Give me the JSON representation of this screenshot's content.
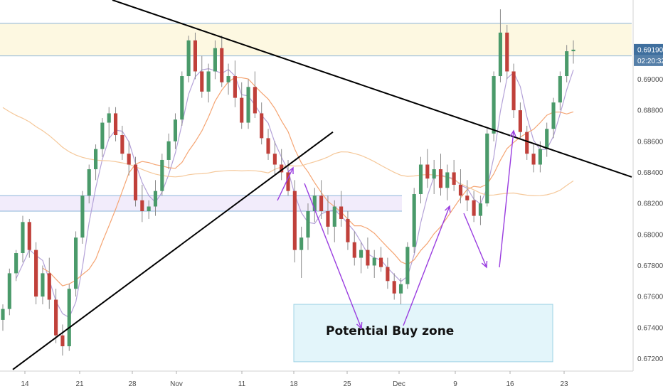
{
  "chart_data": {
    "type": "candlestick",
    "title": "",
    "xlabel": "",
    "ylabel": "",
    "x_ticks": [
      "14",
      "21",
      "28",
      "Nov",
      "11",
      "18",
      "25",
      "Dec",
      "9",
      "16",
      "23"
    ],
    "y_ticks": [
      0.672,
      0.674,
      0.676,
      0.678,
      0.68,
      0.682,
      0.684,
      0.686,
      0.688,
      0.69
    ],
    "y_tick_labels": [
      "0.67200",
      "0.67400",
      "0.67600",
      "0.67800",
      "0.68000",
      "0.68200",
      "0.68400",
      "0.68600",
      "0.68800",
      "0.69000"
    ],
    "ylim": [
      0.6712,
      0.6951
    ],
    "last_price": 0.6919,
    "last_price_label": "0.69190",
    "countdown_label": "02:20:32",
    "colors": {
      "up": "#4a9a6a",
      "down": "#c0403a",
      "wick": "#8a8a8a",
      "trendline": "#000000",
      "arrows": "#9a3de0",
      "zone_fill": "#e3f5fa",
      "zone_border": "#9fd3e6",
      "resistance_band": "#fdf8e1",
      "support_band": "#f2ecfb",
      "band_line": "#8cb4d9",
      "ma_fast": "#b4a2d8",
      "ma_mid": "#f5a573",
      "ma_slow": "#f5c89a",
      "badge_price": "#3f6f9e",
      "badge_timer": "#557fa8"
    },
    "candles_ohlc": [
      [
        0.6745,
        0.6755,
        0.6738,
        0.6752
      ],
      [
        0.6752,
        0.6778,
        0.6748,
        0.6775
      ],
      [
        0.6775,
        0.679,
        0.677,
        0.6788
      ],
      [
        0.6788,
        0.6812,
        0.6782,
        0.6808
      ],
      [
        0.6808,
        0.681,
        0.6785,
        0.679
      ],
      [
        0.679,
        0.6795,
        0.6755,
        0.676
      ],
      [
        0.676,
        0.678,
        0.6755,
        0.6775
      ],
      [
        0.6775,
        0.6785,
        0.6752,
        0.6758
      ],
      [
        0.6758,
        0.6765,
        0.673,
        0.6735
      ],
      [
        0.6735,
        0.6742,
        0.6722,
        0.6728
      ],
      [
        0.6728,
        0.6768,
        0.6725,
        0.6765
      ],
      [
        0.6765,
        0.6802,
        0.676,
        0.6798
      ],
      [
        0.6798,
        0.6828,
        0.6794,
        0.6825
      ],
      [
        0.6825,
        0.6845,
        0.682,
        0.6842
      ],
      [
        0.6842,
        0.6858,
        0.6835,
        0.6855
      ],
      [
        0.6855,
        0.6875,
        0.685,
        0.6872
      ],
      [
        0.6872,
        0.6882,
        0.6862,
        0.6878
      ],
      [
        0.6878,
        0.6882,
        0.686,
        0.6864
      ],
      [
        0.6864,
        0.687,
        0.6848,
        0.6852
      ],
      [
        0.6852,
        0.686,
        0.6838,
        0.6845
      ],
      [
        0.6845,
        0.685,
        0.6818,
        0.6822
      ],
      [
        0.6822,
        0.6832,
        0.6808,
        0.6815
      ],
      [
        0.6815,
        0.6822,
        0.681,
        0.6818
      ],
      [
        0.6818,
        0.6835,
        0.6812,
        0.6828
      ],
      [
        0.6828,
        0.6852,
        0.6825,
        0.6848
      ],
      [
        0.6848,
        0.6865,
        0.6842,
        0.686
      ],
      [
        0.686,
        0.6878,
        0.6855,
        0.6874
      ],
      [
        0.6874,
        0.6905,
        0.687,
        0.6902
      ],
      [
        0.6902,
        0.6928,
        0.6898,
        0.6925
      ],
      [
        0.6925,
        0.693,
        0.69,
        0.6905
      ],
      [
        0.6905,
        0.6915,
        0.6888,
        0.6892
      ],
      [
        0.6892,
        0.691,
        0.6885,
        0.6905
      ],
      [
        0.6905,
        0.6925,
        0.69,
        0.692
      ],
      [
        0.692,
        0.6928,
        0.6895,
        0.6898
      ],
      [
        0.6898,
        0.691,
        0.689,
        0.6902
      ],
      [
        0.6902,
        0.6912,
        0.6882,
        0.6888
      ],
      [
        0.6888,
        0.6898,
        0.6868,
        0.6872
      ],
      [
        0.6872,
        0.69,
        0.6868,
        0.6895
      ],
      [
        0.6895,
        0.6905,
        0.6875,
        0.6878
      ],
      [
        0.6878,
        0.6885,
        0.6858,
        0.6862
      ],
      [
        0.6862,
        0.6868,
        0.6848,
        0.6852
      ],
      [
        0.6852,
        0.686,
        0.6838,
        0.6845
      ],
      [
        0.6845,
        0.6855,
        0.6835,
        0.684
      ],
      [
        0.684,
        0.6848,
        0.6825,
        0.6828
      ],
      [
        0.6828,
        0.6835,
        0.6782,
        0.679
      ],
      [
        0.679,
        0.6805,
        0.6772,
        0.6798
      ],
      [
        0.6798,
        0.682,
        0.679,
        0.6815
      ],
      [
        0.6815,
        0.683,
        0.6808,
        0.6825
      ],
      [
        0.6825,
        0.6835,
        0.681,
        0.6815
      ],
      [
        0.6815,
        0.6825,
        0.68,
        0.6805
      ],
      [
        0.6805,
        0.6822,
        0.6795,
        0.6818
      ],
      [
        0.6818,
        0.6828,
        0.6805,
        0.681
      ],
      [
        0.681,
        0.6815,
        0.679,
        0.6795
      ],
      [
        0.6795,
        0.6802,
        0.678,
        0.6785
      ],
      [
        0.6785,
        0.6795,
        0.6775,
        0.679
      ],
      [
        0.679,
        0.6798,
        0.6778,
        0.678
      ],
      [
        0.678,
        0.679,
        0.6772,
        0.6785
      ],
      [
        0.6785,
        0.6792,
        0.6776,
        0.6779
      ],
      [
        0.6779,
        0.6785,
        0.6765,
        0.677
      ],
      [
        0.677,
        0.6775,
        0.6758,
        0.6762
      ],
      [
        0.6762,
        0.6772,
        0.6755,
        0.6768
      ],
      [
        0.6768,
        0.6795,
        0.6765,
        0.6792
      ],
      [
        0.6792,
        0.683,
        0.6788,
        0.6826
      ],
      [
        0.6826,
        0.685,
        0.682,
        0.6845
      ],
      [
        0.6845,
        0.6855,
        0.683,
        0.6836
      ],
      [
        0.6836,
        0.6848,
        0.6826,
        0.6842
      ],
      [
        0.6842,
        0.6852,
        0.6825,
        0.683
      ],
      [
        0.683,
        0.6845,
        0.6822,
        0.684
      ],
      [
        0.684,
        0.6848,
        0.6828,
        0.6832
      ],
      [
        0.6832,
        0.6842,
        0.682,
        0.6825
      ],
      [
        0.6825,
        0.6835,
        0.6815,
        0.6822
      ],
      [
        0.6822,
        0.6828,
        0.6808,
        0.6812
      ],
      [
        0.6812,
        0.6825,
        0.6806,
        0.682
      ],
      [
        0.682,
        0.6868,
        0.6818,
        0.6865
      ],
      [
        0.6865,
        0.6905,
        0.686,
        0.6902
      ],
      [
        0.6902,
        0.6945,
        0.6898,
        0.693
      ],
      [
        0.693,
        0.6935,
        0.69,
        0.6905
      ],
      [
        0.6905,
        0.691,
        0.6875,
        0.688
      ],
      [
        0.688,
        0.6885,
        0.6862,
        0.6866
      ],
      [
        0.6866,
        0.687,
        0.6848,
        0.6852
      ],
      [
        0.6852,
        0.6858,
        0.684,
        0.6845
      ],
      [
        0.6845,
        0.686,
        0.684,
        0.6855
      ],
      [
        0.6855,
        0.6872,
        0.685,
        0.6868
      ],
      [
        0.6868,
        0.6888,
        0.6862,
        0.6885
      ],
      [
        0.6885,
        0.6905,
        0.688,
        0.6902
      ],
      [
        0.6902,
        0.6922,
        0.6898,
        0.6918
      ],
      [
        0.6918,
        0.6925,
        0.691,
        0.6919
      ]
    ],
    "resistance_band": [
      0.6915,
      0.6936
    ],
    "support_band": [
      0.6815,
      0.6825
    ],
    "buy_zone": {
      "label": "Potential Buy zone",
      "y_range": [
        0.6718,
        0.6755
      ]
    }
  }
}
